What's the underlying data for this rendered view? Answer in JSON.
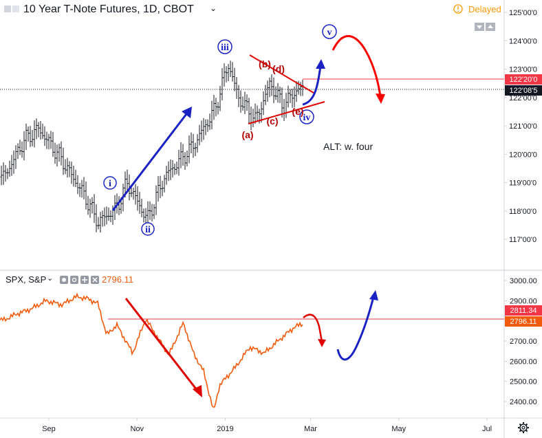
{
  "header": {
    "main_title": "10 Year T-Note Futures, 1D, CBOT",
    "delayed_label": "Delayed",
    "spx_title": "SPX, S&P",
    "spx_value": "2796.11"
  },
  "price_labels": {
    "red_level": "122'20'0",
    "current": "122'08'5",
    "spx_red_level": "2811.34",
    "spx_current": "2796.11"
  },
  "annotations": {
    "wave_i": "i",
    "wave_ii": "ii",
    "wave_iii": "iii",
    "wave_iv": "iv",
    "wave_v": "v",
    "a": "(a)",
    "b": "(b)",
    "c": "(c)",
    "d": "(d)",
    "e": "(e)",
    "alt": "ALT: w. four"
  },
  "colors": {
    "wave_blue": "#1a22c4",
    "wave_red": "#b40000",
    "arrow_red": "#ff0000",
    "spx_line": "#f25a0c",
    "level_red": "#f23645",
    "last_price": "#131722"
  },
  "chart_data": [
    {
      "type": "ohlc",
      "title": "10 Year T-Note Futures, 1D, CBOT",
      "y_ticks": [
        "125'00'0",
        "124'00'0",
        "123'00'0",
        "122'00'0",
        "121'00'0",
        "120'00'0",
        "119'00'0",
        "118'00'0",
        "117'00'0"
      ],
      "x_ticks": [
        "Sep",
        "Nov",
        "2019",
        "Mar",
        "May",
        "Jul"
      ],
      "ylim": [
        116.5,
        125.25
      ],
      "horizontal_levels": [
        122.625,
        122.266
      ],
      "approx_close_path": [
        {
          "x": "2018-08-01",
          "y": 119.2
        },
        {
          "x": "2018-08-15",
          "y": 120.5
        },
        {
          "x": "2018-08-25",
          "y": 120.9
        },
        {
          "x": "2018-09-10",
          "y": 119.8
        },
        {
          "x": "2018-09-25",
          "y": 118.6
        },
        {
          "x": "2018-10-05",
          "y": 117.6
        },
        {
          "x": "2018-10-18",
          "y": 118.1
        },
        {
          "x": "2018-10-25",
          "y": 119.0
        },
        {
          "x": "2018-11-08",
          "y": 117.7
        },
        {
          "x": "2018-11-20",
          "y": 119.2
        },
        {
          "x": "2018-12-10",
          "y": 120.3
        },
        {
          "x": "2018-12-25",
          "y": 121.6
        },
        {
          "x": "2019-01-03",
          "y": 123.2
        },
        {
          "x": "2019-01-10",
          "y": 122.0
        },
        {
          "x": "2019-01-22",
          "y": 121.2
        },
        {
          "x": "2019-02-01",
          "y": 122.5
        },
        {
          "x": "2019-02-10",
          "y": 121.7
        },
        {
          "x": "2019-02-20",
          "y": 122.3
        },
        {
          "x": "2019-02-28",
          "y": 122.27
        }
      ]
    },
    {
      "type": "line",
      "title": "SPX, S&P",
      "y_ticks": [
        3000,
        2900,
        2800,
        2700,
        2600,
        2500,
        2400
      ],
      "ylim": [
        2330,
        3030
      ],
      "horizontal_levels": [
        2811.34,
        2796.11
      ],
      "series": [
        {
          "name": "SPX",
          "points": [
            {
              "x": "2018-08-01",
              "y": 2805
            },
            {
              "x": "2018-08-10",
              "y": 2835
            },
            {
              "x": "2018-08-20",
              "y": 2860
            },
            {
              "x": "2018-08-30",
              "y": 2900
            },
            {
              "x": "2018-09-10",
              "y": 2880
            },
            {
              "x": "2018-09-20",
              "y": 2920
            },
            {
              "x": "2018-09-28",
              "y": 2910
            },
            {
              "x": "2018-10-05",
              "y": 2885
            },
            {
              "x": "2018-10-11",
              "y": 2730
            },
            {
              "x": "2018-10-18",
              "y": 2780
            },
            {
              "x": "2018-10-29",
              "y": 2640
            },
            {
              "x": "2018-11-07",
              "y": 2810
            },
            {
              "x": "2018-11-15",
              "y": 2720
            },
            {
              "x": "2018-11-23",
              "y": 2630
            },
            {
              "x": "2018-12-03",
              "y": 2790
            },
            {
              "x": "2018-12-10",
              "y": 2640
            },
            {
              "x": "2018-12-17",
              "y": 2550
            },
            {
              "x": "2018-12-24",
              "y": 2351
            },
            {
              "x": "2018-12-28",
              "y": 2480
            },
            {
              "x": "2019-01-08",
              "y": 2570
            },
            {
              "x": "2019-01-18",
              "y": 2670
            },
            {
              "x": "2019-01-28",
              "y": 2640
            },
            {
              "x": "2019-02-08",
              "y": 2710
            },
            {
              "x": "2019-02-18",
              "y": 2770
            },
            {
              "x": "2019-02-28",
              "y": 2796.11
            }
          ]
        }
      ]
    }
  ]
}
